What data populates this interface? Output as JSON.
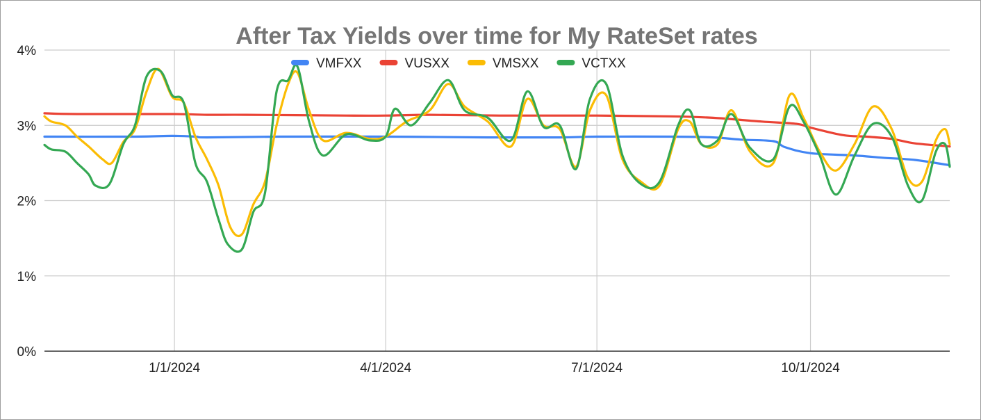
{
  "chart_data": {
    "type": "line",
    "title": "After Tax Yields over time for My RateSet rates",
    "xlabel": "",
    "ylabel": "",
    "x_range": [
      "2023-11-06",
      "2024-11-30"
    ],
    "ylim": [
      0,
      4
    ],
    "y_ticks": [
      0,
      1,
      2,
      3,
      4
    ],
    "y_tick_labels": [
      "0%",
      "1%",
      "2%",
      "3%",
      "4%"
    ],
    "x_ticks": [
      "2024-01-01",
      "2024-04-01",
      "2024-07-01",
      "2024-10-01"
    ],
    "x_tick_labels": [
      "1/1/2024",
      "4/1/2024",
      "7/1/2024",
      "10/1/2024"
    ],
    "grid": true,
    "legend_position": "top",
    "series": [
      {
        "name": "VMFXX",
        "color": "#4285f4",
        "points": [
          [
            "2023-11-06",
            2.85
          ],
          [
            "2023-12-15",
            2.85
          ],
          [
            "2023-12-31",
            2.86
          ],
          [
            "2024-01-10",
            2.85
          ],
          [
            "2024-01-15",
            2.84
          ],
          [
            "2024-02-15",
            2.85
          ],
          [
            "2024-04-01",
            2.85
          ],
          [
            "2024-05-15",
            2.84
          ],
          [
            "2024-06-15",
            2.84
          ],
          [
            "2024-07-01",
            2.85
          ],
          [
            "2024-08-01",
            2.85
          ],
          [
            "2024-08-20",
            2.84
          ],
          [
            "2024-09-01",
            2.81
          ],
          [
            "2024-09-15",
            2.79
          ],
          [
            "2024-09-20",
            2.71
          ],
          [
            "2024-10-01",
            2.63
          ],
          [
            "2024-10-20",
            2.6
          ],
          [
            "2024-11-01",
            2.57
          ],
          [
            "2024-11-15",
            2.54
          ],
          [
            "2024-11-30",
            2.47
          ]
        ]
      },
      {
        "name": "VUSXX",
        "color": "#ea4335",
        "points": [
          [
            "2023-11-06",
            3.16
          ],
          [
            "2023-11-20",
            3.15
          ],
          [
            "2023-12-31",
            3.15
          ],
          [
            "2024-01-15",
            3.14
          ],
          [
            "2024-02-01",
            3.14
          ],
          [
            "2024-03-15",
            3.13
          ],
          [
            "2024-04-01",
            3.13
          ],
          [
            "2024-04-20",
            3.14
          ],
          [
            "2024-05-20",
            3.13
          ],
          [
            "2024-07-01",
            3.13
          ],
          [
            "2024-08-01",
            3.12
          ],
          [
            "2024-08-20",
            3.1
          ],
          [
            "2024-09-10",
            3.05
          ],
          [
            "2024-09-25",
            3.02
          ],
          [
            "2024-10-01",
            2.97
          ],
          [
            "2024-10-15",
            2.87
          ],
          [
            "2024-10-25",
            2.85
          ],
          [
            "2024-11-05",
            2.82
          ],
          [
            "2024-11-15",
            2.76
          ],
          [
            "2024-11-30",
            2.72
          ]
        ]
      },
      {
        "name": "VMSXX",
        "color": "#fbbc04",
        "points": [
          [
            "2023-11-06",
            3.12
          ],
          [
            "2023-11-09",
            3.05
          ],
          [
            "2023-11-15",
            3.0
          ],
          [
            "2023-11-20",
            2.85
          ],
          [
            "2023-11-25",
            2.72
          ],
          [
            "2023-12-01",
            2.55
          ],
          [
            "2023-12-05",
            2.5
          ],
          [
            "2023-12-10",
            2.78
          ],
          [
            "2023-12-15",
            2.95
          ],
          [
            "2023-12-20",
            3.45
          ],
          [
            "2023-12-25",
            3.75
          ],
          [
            "2023-12-31",
            3.38
          ],
          [
            "2024-01-05",
            3.3
          ],
          [
            "2024-01-10",
            2.85
          ],
          [
            "2024-01-15",
            2.55
          ],
          [
            "2024-01-20",
            2.2
          ],
          [
            "2024-01-25",
            1.65
          ],
          [
            "2024-01-30",
            1.55
          ],
          [
            "2024-02-04",
            1.95
          ],
          [
            "2024-02-09",
            2.25
          ],
          [
            "2024-02-14",
            3.0
          ],
          [
            "2024-02-19",
            3.55
          ],
          [
            "2024-02-23",
            3.7
          ],
          [
            "2024-02-28",
            3.2
          ],
          [
            "2024-03-05",
            2.8
          ],
          [
            "2024-03-15",
            2.9
          ],
          [
            "2024-03-25",
            2.82
          ],
          [
            "2024-04-01",
            2.85
          ],
          [
            "2024-04-10",
            3.05
          ],
          [
            "2024-04-20",
            3.2
          ],
          [
            "2024-04-28",
            3.55
          ],
          [
            "2024-05-05",
            3.25
          ],
          [
            "2024-05-15",
            3.05
          ],
          [
            "2024-05-25",
            2.72
          ],
          [
            "2024-06-01",
            3.35
          ],
          [
            "2024-06-08",
            3.0
          ],
          [
            "2024-06-15",
            2.95
          ],
          [
            "2024-06-22",
            2.45
          ],
          [
            "2024-06-28",
            3.2
          ],
          [
            "2024-07-05",
            3.4
          ],
          [
            "2024-07-12",
            2.55
          ],
          [
            "2024-07-20",
            2.25
          ],
          [
            "2024-07-28",
            2.2
          ],
          [
            "2024-08-05",
            2.95
          ],
          [
            "2024-08-10",
            3.05
          ],
          [
            "2024-08-15",
            2.75
          ],
          [
            "2024-08-22",
            2.75
          ],
          [
            "2024-08-28",
            3.2
          ],
          [
            "2024-09-05",
            2.65
          ],
          [
            "2024-09-15",
            2.5
          ],
          [
            "2024-09-22",
            3.4
          ],
          [
            "2024-09-28",
            3.1
          ],
          [
            "2024-10-05",
            2.65
          ],
          [
            "2024-10-12",
            2.4
          ],
          [
            "2024-10-20",
            2.75
          ],
          [
            "2024-10-28",
            3.25
          ],
          [
            "2024-11-05",
            2.95
          ],
          [
            "2024-11-12",
            2.3
          ],
          [
            "2024-11-18",
            2.25
          ],
          [
            "2024-11-24",
            2.8
          ],
          [
            "2024-11-28",
            2.95
          ],
          [
            "2024-11-30",
            2.75
          ]
        ]
      },
      {
        "name": "VCTXX",
        "color": "#34a853",
        "points": [
          [
            "2023-11-06",
            2.74
          ],
          [
            "2023-11-09",
            2.68
          ],
          [
            "2023-11-15",
            2.65
          ],
          [
            "2023-11-20",
            2.5
          ],
          [
            "2023-11-25",
            2.35
          ],
          [
            "2023-11-28",
            2.2
          ],
          [
            "2023-12-04",
            2.22
          ],
          [
            "2023-12-10",
            2.75
          ],
          [
            "2023-12-15",
            3.0
          ],
          [
            "2023-12-20",
            3.65
          ],
          [
            "2023-12-26",
            3.72
          ],
          [
            "2023-12-31",
            3.4
          ],
          [
            "2024-01-05",
            3.3
          ],
          [
            "2024-01-10",
            2.5
          ],
          [
            "2024-01-15",
            2.25
          ],
          [
            "2024-01-20",
            1.75
          ],
          [
            "2024-01-24",
            1.42
          ],
          [
            "2024-01-30",
            1.35
          ],
          [
            "2024-02-04",
            1.85
          ],
          [
            "2024-02-09",
            2.1
          ],
          [
            "2024-02-14",
            3.45
          ],
          [
            "2024-02-19",
            3.6
          ],
          [
            "2024-02-23",
            3.78
          ],
          [
            "2024-02-28",
            3.05
          ],
          [
            "2024-03-05",
            2.6
          ],
          [
            "2024-03-15",
            2.88
          ],
          [
            "2024-03-25",
            2.8
          ],
          [
            "2024-04-01",
            2.85
          ],
          [
            "2024-04-05",
            3.22
          ],
          [
            "2024-04-12",
            3.0
          ],
          [
            "2024-04-20",
            3.3
          ],
          [
            "2024-04-28",
            3.6
          ],
          [
            "2024-05-05",
            3.2
          ],
          [
            "2024-05-15",
            3.1
          ],
          [
            "2024-05-25",
            2.8
          ],
          [
            "2024-06-01",
            3.45
          ],
          [
            "2024-06-08",
            2.98
          ],
          [
            "2024-06-15",
            3.0
          ],
          [
            "2024-06-22",
            2.42
          ],
          [
            "2024-06-28",
            3.35
          ],
          [
            "2024-07-05",
            3.55
          ],
          [
            "2024-07-12",
            2.6
          ],
          [
            "2024-07-20",
            2.22
          ],
          [
            "2024-07-28",
            2.25
          ],
          [
            "2024-08-05",
            3.0
          ],
          [
            "2024-08-10",
            3.2
          ],
          [
            "2024-08-15",
            2.75
          ],
          [
            "2024-08-22",
            2.8
          ],
          [
            "2024-08-28",
            3.15
          ],
          [
            "2024-09-05",
            2.7
          ],
          [
            "2024-09-15",
            2.55
          ],
          [
            "2024-09-22",
            3.25
          ],
          [
            "2024-09-28",
            3.05
          ],
          [
            "2024-10-05",
            2.6
          ],
          [
            "2024-10-12",
            2.08
          ],
          [
            "2024-10-20",
            2.6
          ],
          [
            "2024-10-28",
            3.02
          ],
          [
            "2024-11-05",
            2.85
          ],
          [
            "2024-11-12",
            2.2
          ],
          [
            "2024-11-18",
            2.0
          ],
          [
            "2024-11-24",
            2.65
          ],
          [
            "2024-11-28",
            2.75
          ],
          [
            "2024-11-30",
            2.45
          ]
        ]
      }
    ]
  }
}
